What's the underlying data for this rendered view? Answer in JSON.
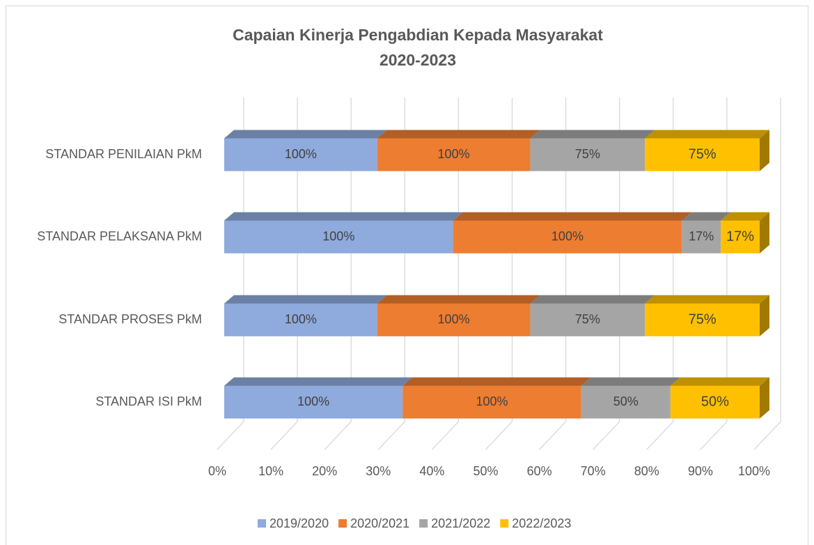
{
  "chart_data": {
    "type": "bar3d_stacked100",
    "title": [
      "Capaian Kinerja Pengabdian Kepada Masyarakat",
      "2020-2023"
    ],
    "categories": [
      "STANDAR ISI PkM",
      "STANDAR PROSES PkM",
      "STANDAR PELAKSANA PkM",
      "STANDAR PENILAIAN PkM"
    ],
    "series": [
      {
        "name": "2019/2020",
        "color": "#8faadc",
        "values": [
          100,
          100,
          100,
          100
        ],
        "value_labels": [
          "100%",
          "100%",
          "100%",
          "100%"
        ]
      },
      {
        "name": "2020/2021",
        "color": "#ed7d31",
        "values": [
          100,
          100,
          100,
          100
        ],
        "value_labels": [
          "100%",
          "100%",
          "100%",
          "100%"
        ]
      },
      {
        "name": "2021/2022",
        "color": "#a5a5a5",
        "values": [
          50,
          75,
          17,
          75
        ],
        "value_labels": [
          "50%",
          "75%",
          "17%",
          "75%"
        ]
      },
      {
        "name": "2022/2023",
        "color": "#ffc000",
        "values": [
          50,
          75,
          17,
          75
        ],
        "value_labels": [
          "50%",
          "75%",
          "17%",
          "75%"
        ]
      }
    ],
    "xlim": [
      0,
      100
    ],
    "xticks": [
      {
        "value": 0,
        "label": "0%"
      },
      {
        "value": 10,
        "label": "10%"
      },
      {
        "value": 20,
        "label": "20%"
      },
      {
        "value": 30,
        "label": "30%"
      },
      {
        "value": 40,
        "label": "40%"
      },
      {
        "value": 50,
        "label": "50%"
      },
      {
        "value": 60,
        "label": "60%"
      },
      {
        "value": 70,
        "label": "70%"
      },
      {
        "value": 80,
        "label": "80%"
      },
      {
        "value": 90,
        "label": "90%"
      },
      {
        "value": 100,
        "label": "100%"
      }
    ],
    "grid": true,
    "legend": "bottom"
  }
}
